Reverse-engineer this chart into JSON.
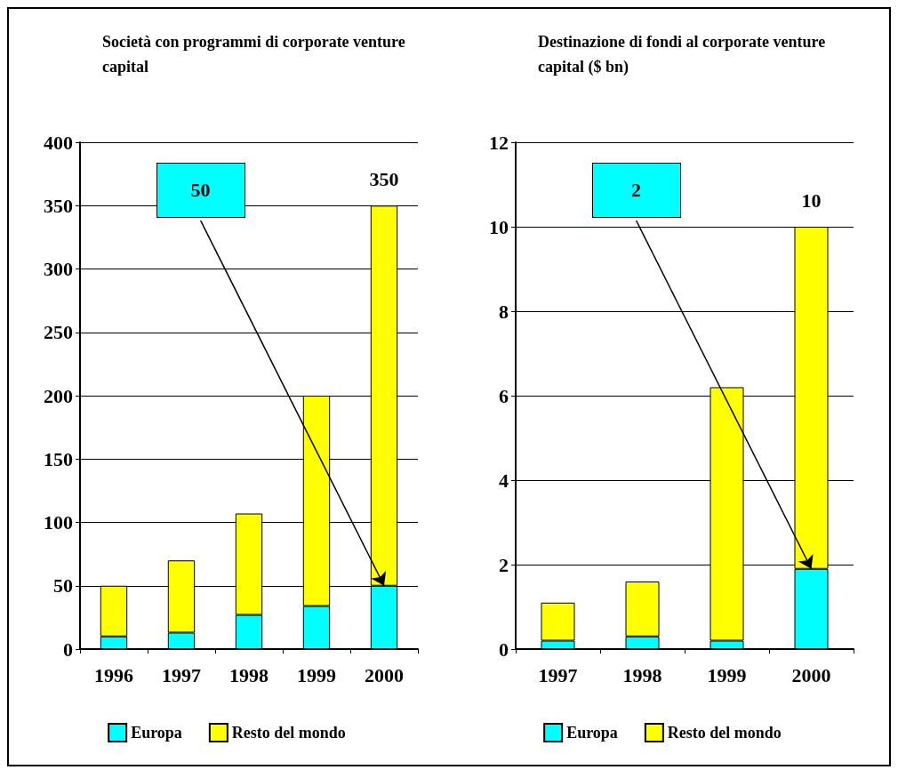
{
  "chart_data": [
    {
      "type": "bar",
      "title": "Società con programmi di corporate venture capital",
      "categories": [
        "1996",
        "1997",
        "1998",
        "1999",
        "2000"
      ],
      "stacked": true,
      "ylim": [
        0,
        400
      ],
      "yticks": [
        0,
        50,
        100,
        150,
        200,
        250,
        300,
        350,
        400
      ],
      "grid": "y",
      "legend": "bottom",
      "series": [
        {
          "name": "Europa",
          "color": "#00ffff",
          "values": [
            10,
            13,
            27,
            34,
            50
          ]
        },
        {
          "name": "Resto del mondo",
          "color": "#ffff00",
          "values": [
            40,
            57,
            80,
            166,
            300
          ]
        }
      ],
      "annotations": [
        {
          "text": "50",
          "x": "2000",
          "y": 50
        },
        {
          "text": "350",
          "x": "2000",
          "y": 350
        }
      ]
    },
    {
      "type": "bar",
      "title": "Destinazione di fondi al corporate venture capital ($ bn)",
      "categories": [
        "1997",
        "1998",
        "1999",
        "2000"
      ],
      "stacked": true,
      "ylim": [
        0,
        12
      ],
      "yticks": [
        0,
        2,
        4,
        6,
        8,
        10,
        12
      ],
      "grid": "y",
      "legend": "bottom",
      "series": [
        {
          "name": "Europa",
          "color": "#00ffff",
          "values": [
            0.2,
            0.3,
            0.2,
            1.9
          ]
        },
        {
          "name": "Resto del mondo",
          "color": "#ffff00",
          "values": [
            0.9,
            1.3,
            6.0,
            8.1
          ]
        }
      ],
      "annotations": [
        {
          "text": "2",
          "x": "2000",
          "y": 1.9
        },
        {
          "text": "10",
          "x": "2000",
          "y": 10
        }
      ]
    }
  ]
}
